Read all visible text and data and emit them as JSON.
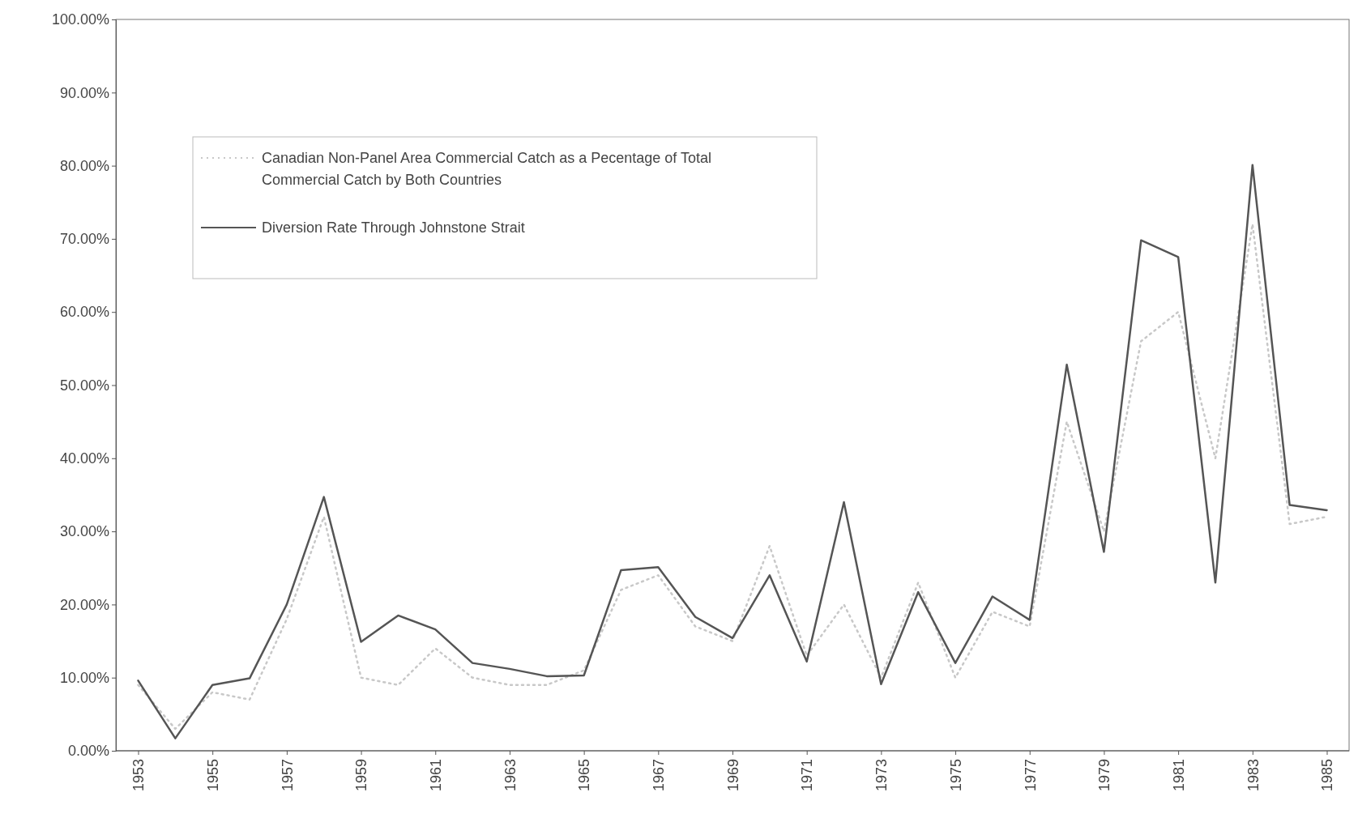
{
  "chart_data": {
    "type": "line",
    "x": [
      1953,
      1954,
      1955,
      1956,
      1957,
      1958,
      1959,
      1960,
      1961,
      1962,
      1963,
      1964,
      1965,
      1966,
      1967,
      1968,
      1969,
      1970,
      1971,
      1972,
      1973,
      1974,
      1975,
      1976,
      1977,
      1978,
      1979,
      1980,
      1981,
      1982,
      1983,
      1984,
      1985
    ],
    "series": [
      {
        "name": "Canadian Non-Panel Area Commercial Catch as a Pecentage of Total Commercial Catch by Both Countries",
        "color": "#c8c8c8",
        "line_style": "dotted",
        "values": [
          9,
          3,
          8,
          7,
          18,
          32,
          10,
          9,
          14,
          10,
          9,
          9,
          11,
          22,
          24,
          17,
          15,
          28,
          13,
          20,
          10,
          23,
          10,
          19,
          17,
          45,
          30,
          56,
          60,
          40,
          72,
          31,
          32
        ]
      },
      {
        "name": "Diversion Rate Through Johnstone Strait",
        "color": "#555555",
        "line_style": "solid",
        "values": [
          9.6,
          1.7,
          9.0,
          9.9,
          20.0,
          34.7,
          14.9,
          18.5,
          16.6,
          12.0,
          11.2,
          10.2,
          10.3,
          24.7,
          25.1,
          18.3,
          15.4,
          24.0,
          12.2,
          34.0,
          9.1,
          21.7,
          12.0,
          21.1,
          17.9,
          52.8,
          27.2,
          69.8,
          67.5,
          23.0,
          80.1,
          33.6,
          32.9
        ]
      }
    ],
    "xlim": [
      1952.4,
      1985.6
    ],
    "xticks": [
      1953,
      1955,
      1957,
      1959,
      1961,
      1963,
      1965,
      1967,
      1969,
      1971,
      1973,
      1975,
      1977,
      1979,
      1981,
      1983,
      1985
    ],
    "ylim": [
      0,
      100
    ],
    "yticks": [
      {
        "value": 0,
        "label": "0.00%"
      },
      {
        "value": 10,
        "label": "10.00%"
      },
      {
        "value": 20,
        "label": "20.00%"
      },
      {
        "value": 30,
        "label": "30.00%"
      },
      {
        "value": 40,
        "label": "40.00%"
      },
      {
        "value": 50,
        "label": "50.00%"
      },
      {
        "value": 60,
        "label": "60.00%"
      },
      {
        "value": 70,
        "label": "70.00%"
      },
      {
        "value": 80,
        "label": "80.00%"
      },
      {
        "value": 90,
        "label": "90.00%"
      },
      {
        "value": 100,
        "label": "100.00%"
      }
    ],
    "legend": "top left",
    "marker": "none"
  }
}
